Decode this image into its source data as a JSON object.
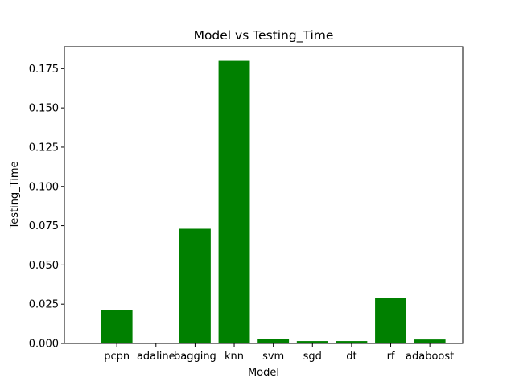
{
  "chart_data": {
    "type": "bar",
    "title": "Model vs Testing_Time",
    "xlabel": "Model",
    "ylabel": "Testing_Time",
    "categories": [
      "pcpn",
      "adaline",
      "bagging",
      "knn",
      "svm",
      "sgd",
      "dt",
      "rf",
      "adaboost"
    ],
    "values": [
      0.0215,
      0.0,
      0.073,
      0.18,
      0.003,
      0.0015,
      0.0015,
      0.029,
      0.0025
    ],
    "ylim": [
      0,
      0.189
    ],
    "yticks": [
      0.0,
      0.025,
      0.05,
      0.075,
      0.1,
      0.125,
      0.15,
      0.175
    ],
    "ytick_labels": [
      "0.000",
      "0.025",
      "0.050",
      "0.075",
      "0.100",
      "0.125",
      "0.150",
      "0.175"
    ],
    "grid": false,
    "bar_color": "#008000"
  }
}
